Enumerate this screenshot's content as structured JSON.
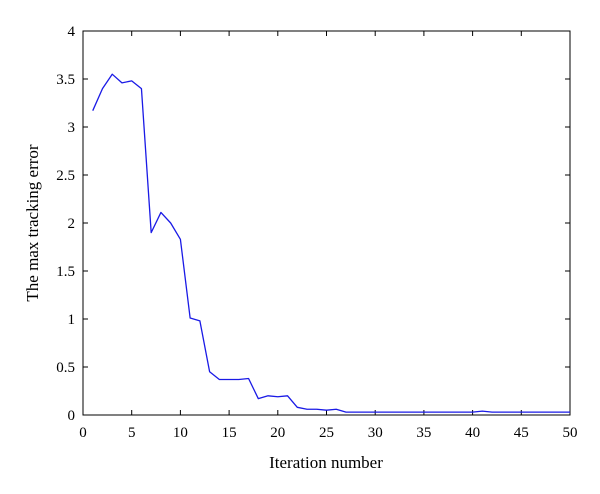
{
  "chart_data": {
    "type": "line",
    "title": "",
    "xlabel": "Iteration number",
    "ylabel": "The max tracking error",
    "xlim": [
      0,
      50
    ],
    "ylim": [
      0,
      4
    ],
    "xticks": [
      0,
      5,
      10,
      15,
      20,
      25,
      30,
      35,
      40,
      45,
      50
    ],
    "yticks": [
      0,
      0.5,
      1,
      1.5,
      2,
      2.5,
      3,
      3.5,
      4
    ],
    "xtick_labels": [
      "0",
      "5",
      "10",
      "15",
      "20",
      "25",
      "30",
      "35",
      "40",
      "45",
      "50"
    ],
    "ytick_labels": [
      "0",
      "0.5",
      "1",
      "1.5",
      "2",
      "2.5",
      "3",
      "3.5",
      "4"
    ],
    "grid": false,
    "series": [
      {
        "color": "#1a1ae6",
        "x": [
          1,
          2,
          3,
          4,
          5,
          6,
          7,
          8,
          9,
          10,
          11,
          12,
          13,
          14,
          15,
          16,
          17,
          18,
          19,
          20,
          21,
          22,
          23,
          24,
          25,
          26,
          27,
          28,
          29,
          30,
          31,
          32,
          33,
          34,
          35,
          36,
          37,
          38,
          39,
          40,
          41,
          42,
          43,
          44,
          45,
          46,
          47,
          48,
          49,
          50
        ],
        "y": [
          3.17,
          3.4,
          3.55,
          3.46,
          3.48,
          3.4,
          1.9,
          2.11,
          2.0,
          1.83,
          1.01,
          0.98,
          0.45,
          0.37,
          0.37,
          0.37,
          0.38,
          0.17,
          0.2,
          0.19,
          0.2,
          0.08,
          0.06,
          0.06,
          0.05,
          0.06,
          0.03,
          0.03,
          0.03,
          0.03,
          0.03,
          0.03,
          0.03,
          0.03,
          0.03,
          0.03,
          0.03,
          0.03,
          0.03,
          0.03,
          0.04,
          0.03,
          0.03,
          0.03,
          0.03,
          0.03,
          0.03,
          0.03,
          0.03,
          0.03
        ]
      }
    ]
  }
}
